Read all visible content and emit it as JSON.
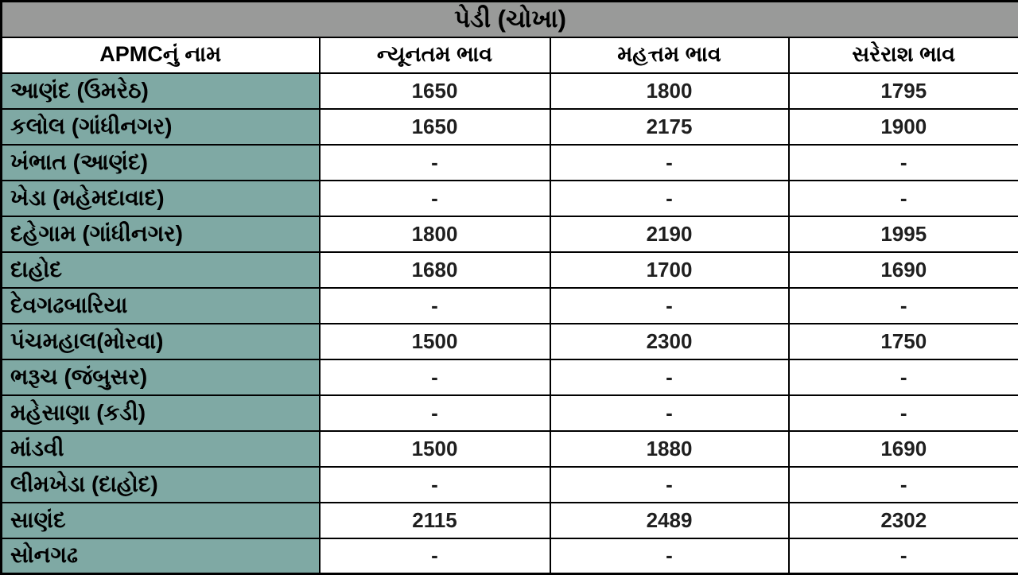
{
  "table": {
    "title": "પેડી (ચોખા)",
    "columns": {
      "name": "APMCનું નામ",
      "min": "ન્યૂનતમ ભાવ",
      "max": "મહત્તમ ભાવ",
      "avg": "સરેરાશ ભાવ"
    },
    "rows": [
      {
        "name": "આણંદ (ઉમરેઠ)",
        "min": "1650",
        "max": "1800",
        "avg": "1795"
      },
      {
        "name": "કલોલ  (ગાંધીનગર)",
        "min": "1650",
        "max": "2175",
        "avg": "1900"
      },
      {
        "name": "ખંભાત (આણંદ)",
        "min": "-",
        "max": "-",
        "avg": "-"
      },
      {
        "name": "ખેડા (મહેમદાવાદ)",
        "min": "-",
        "max": "-",
        "avg": "-"
      },
      {
        "name": "દહેગામ (ગાંધીનગર)",
        "min": "1800",
        "max": "2190",
        "avg": "1995"
      },
      {
        "name": "દાહોદ",
        "min": "1680",
        "max": "1700",
        "avg": "1690"
      },
      {
        "name": "દેવગઢબારિયા",
        "min": "-",
        "max": "-",
        "avg": "-"
      },
      {
        "name": "પંચમહાલ(મોરવા)",
        "min": "1500",
        "max": "2300",
        "avg": "1750"
      },
      {
        "name": "ભરૂચ (જંબુસર)",
        "min": "-",
        "max": "-",
        "avg": "-"
      },
      {
        "name": "મહેસાણા (કડી)",
        "min": "-",
        "max": "-",
        "avg": "-"
      },
      {
        "name": "માંડવી",
        "min": "1500",
        "max": "1880",
        "avg": "1690"
      },
      {
        "name": "લીમખેડા (દાહોદ)",
        "min": "-",
        "max": "-",
        "avg": "-"
      },
      {
        "name": "સાણંદ",
        "min": "2115",
        "max": "2489",
        "avg": "2302"
      },
      {
        "name": "સોનગઢ",
        "min": "-",
        "max": "-",
        "avg": "-"
      }
    ],
    "colors": {
      "title_bg": "#999A99",
      "name_column_bg": "#7FA9A4",
      "value_cell_bg": "#FFFFFF",
      "border": "#000000",
      "value_text": "#1F1F1F"
    }
  }
}
